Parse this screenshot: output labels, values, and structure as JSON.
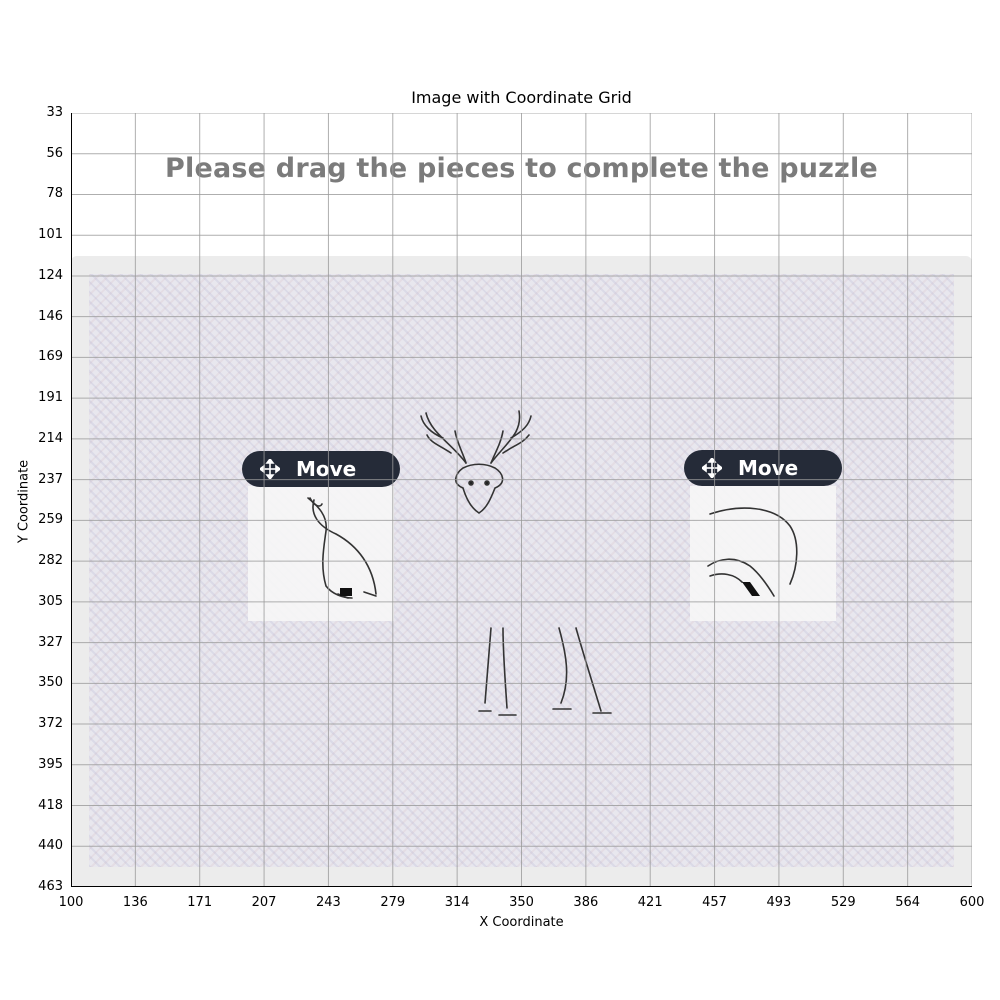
{
  "figure": {
    "title": "Image with Coordinate Grid",
    "xlabel": "X Coordinate",
    "ylabel": "Y Coordinate",
    "x_ticks": [
      "100",
      "136",
      "171",
      "207",
      "243",
      "279",
      "314",
      "350",
      "386",
      "421",
      "457",
      "493",
      "529",
      "564",
      "600"
    ],
    "y_ticks": [
      "33",
      "56",
      "78",
      "101",
      "124",
      "146",
      "169",
      "191",
      "214",
      "237",
      "259",
      "282",
      "305",
      "327",
      "350",
      "372",
      "395",
      "418",
      "440",
      "463"
    ],
    "grid": true
  },
  "puzzle": {
    "instruction": "Please drag the pieces to complete the puzzle",
    "pieces": [
      {
        "handle_label": "Move",
        "icon": "move-arrows-icon",
        "content": "deer-head-body-fragment"
      },
      {
        "handle_label": "Move",
        "icon": "move-arrows-icon",
        "content": "deer-back-fragment"
      }
    ],
    "colors": {
      "handle": "#252b38",
      "instruction": "#7b7b7b",
      "board": "#ececec"
    }
  }
}
